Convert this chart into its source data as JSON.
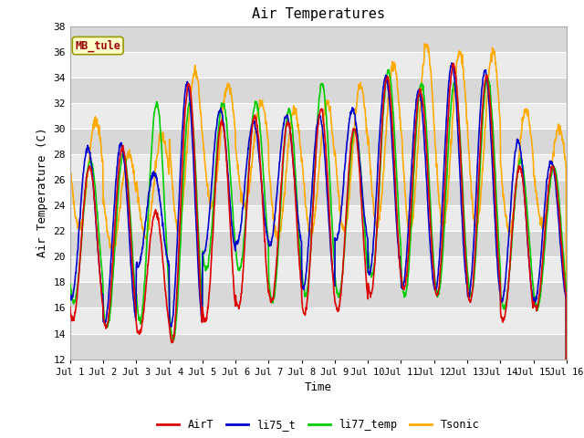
{
  "title": "Air Temperatures",
  "xlabel": "Time",
  "ylabel": "Air Temperature (C)",
  "ylim": [
    12,
    38
  ],
  "yticks": [
    12,
    14,
    16,
    18,
    20,
    22,
    24,
    26,
    28,
    30,
    32,
    34,
    36,
    38
  ],
  "xtick_labels": [
    "Jul 1",
    "Jul 2",
    "Jul 3",
    "Jul 4",
    "Jul 5",
    "Jul 6",
    "Jul 7",
    "Jul 8",
    "Jul 9",
    "Jul 10",
    "Jul 11",
    "Jul 12",
    "Jul 13",
    "Jul 14",
    "Jul 15",
    "Jul 16"
  ],
  "series_colors": {
    "AirT": "#dd0000",
    "li75_t": "#0000cc",
    "li77_temp": "#00cc00",
    "Tsonic": "#ffaa00"
  },
  "series_lw": 1.2,
  "annotation_text": "MB_tule",
  "annotation_color": "#990000",
  "annotation_bg": "#ffffcc",
  "annotation_edge": "#999900",
  "plot_bg_light": "#ebebeb",
  "plot_bg_dark": "#d8d8d8",
  "fig_bg": "#ffffff",
  "n_days": 15,
  "pts_per_day": 96,
  "day_mins_airt": [
    15.1,
    14.5,
    14.0,
    13.3,
    15.0,
    16.0,
    16.5,
    15.5,
    15.8,
    17.0,
    17.5,
    17.0,
    16.5,
    15.0,
    16.0
  ],
  "day_maxs_airt": [
    27.0,
    28.5,
    23.5,
    33.5,
    30.5,
    31.0,
    30.5,
    31.5,
    30.0,
    34.0,
    33.0,
    35.0,
    34.0,
    27.0,
    27.0
  ],
  "day_mins_li75": [
    16.7,
    14.8,
    19.2,
    14.5,
    20.3,
    21.0,
    21.0,
    17.5,
    21.3,
    18.7,
    17.5,
    17.4,
    17.0,
    16.5,
    16.5
  ],
  "day_maxs_li75": [
    28.5,
    28.8,
    26.5,
    33.5,
    31.5,
    30.5,
    31.0,
    31.0,
    31.5,
    34.0,
    33.0,
    35.0,
    34.5,
    29.0,
    27.5
  ],
  "day_mins_li77": [
    16.5,
    14.5,
    15.0,
    13.5,
    19.0,
    19.0,
    16.5,
    17.0,
    17.0,
    18.5,
    17.0,
    17.0,
    17.0,
    16.0,
    16.0
  ],
  "day_maxs_li77": [
    27.5,
    28.0,
    32.0,
    32.0,
    32.0,
    32.0,
    31.5,
    33.5,
    30.0,
    34.5,
    33.5,
    33.5,
    34.0,
    27.5,
    27.0
  ],
  "day_mins_tsonic": [
    22.3,
    20.5,
    21.5,
    22.0,
    24.0,
    24.0,
    21.5,
    21.8,
    22.0,
    22.5,
    22.0,
    22.5,
    22.5,
    22.0,
    22.5
  ],
  "day_maxs_tsonic": [
    30.5,
    28.0,
    29.5,
    34.5,
    33.5,
    32.0,
    31.5,
    32.0,
    33.5,
    35.0,
    36.5,
    36.0,
    36.0,
    31.5,
    30.0
  ],
  "phase_airt": 0.0,
  "phase_li75": 0.3,
  "phase_li77": -0.2,
  "phase_tsonic": -1.2
}
